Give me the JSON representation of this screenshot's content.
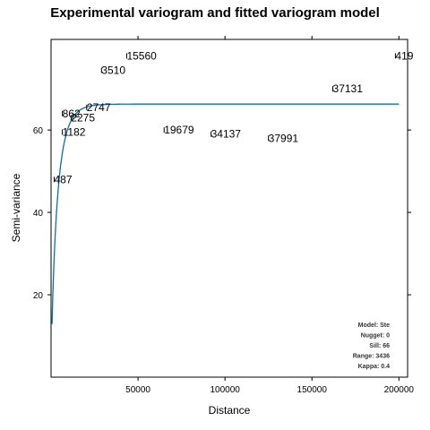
{
  "chart_data": {
    "type": "scatter",
    "title": "Experimental variogram and fitted variogram model",
    "xlabel": "Distance",
    "ylabel": "Semi-variance",
    "xlim": [
      0,
      205000
    ],
    "ylim": [
      0,
      82
    ],
    "xticks": [
      50000,
      100000,
      150000,
      200000
    ],
    "xtick_labels": [
      "50000",
      "100000",
      "150000",
      "200000"
    ],
    "yticks": [
      20,
      40,
      60
    ],
    "ytick_labels": [
      "20",
      "40",
      "60"
    ],
    "points": [
      {
        "x": 1800,
        "y": 48.0,
        "label": "487"
      },
      {
        "x": 6500,
        "y": 59.5,
        "label": "1182"
      },
      {
        "x": 6500,
        "y": 64.0,
        "label": "862"
      },
      {
        "x": 11500,
        "y": 63.0,
        "label": "2275"
      },
      {
        "x": 20500,
        "y": 65.5,
        "label": "2747"
      },
      {
        "x": 29000,
        "y": 74.5,
        "label": "3510"
      },
      {
        "x": 43500,
        "y": 78.0,
        "label": "15560"
      },
      {
        "x": 65000,
        "y": 60.0,
        "label": "19679"
      },
      {
        "x": 92000,
        "y": 59.0,
        "label": "34137"
      },
      {
        "x": 125000,
        "y": 58.0,
        "label": "37991"
      },
      {
        "x": 162000,
        "y": 70.0,
        "label": "37131"
      },
      {
        "x": 198000,
        "y": 78.0,
        "label": "419"
      }
    ],
    "model": {
      "type": "Ste",
      "nugget": 0,
      "sill": 66.3,
      "range": 3436,
      "kappa": 0.4,
      "x_end": 200000
    },
    "line_color": "#0f6e9e",
    "annotation_lines": [
      "Model: Ste",
      "Nugget: 0",
      "Sill: 66",
      "Range: 3436",
      "Kappa: 0.4"
    ]
  }
}
